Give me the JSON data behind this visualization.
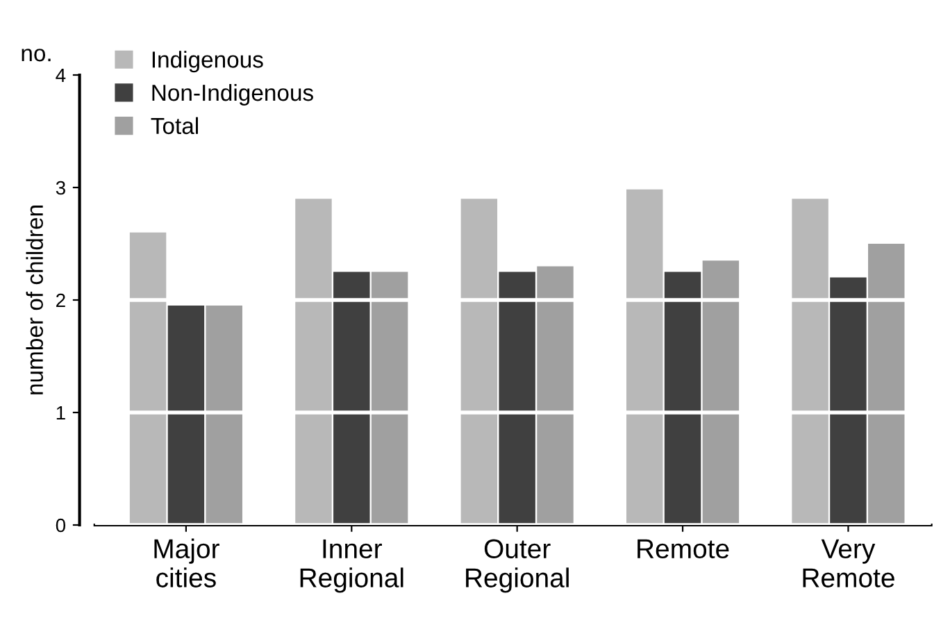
{
  "chart_data": {
    "type": "bar",
    "ylabel": "number of children",
    "annotations": [
      "no."
    ],
    "categories": [
      "Major\ncities",
      "Inner\nRegional",
      "Outer\nRegional",
      "Remote",
      "Very\nRemote"
    ],
    "series": [
      {
        "name": "Indigenous",
        "color": "#b8b8b8",
        "values": [
          2.6,
          2.9,
          2.9,
          3.0,
          2.9
        ]
      },
      {
        "name": "Non-Indigenous",
        "color": "#404040",
        "values": [
          1.95,
          2.25,
          2.25,
          2.25,
          2.2
        ]
      },
      {
        "name": "Total",
        "color": "#a0a0a0",
        "values": [
          1.95,
          2.25,
          2.3,
          2.35,
          2.5
        ]
      }
    ],
    "ylim": [
      0,
      4
    ],
    "yticks": [
      0,
      1,
      2,
      3,
      4
    ],
    "grid": "y",
    "legend": "top left"
  }
}
